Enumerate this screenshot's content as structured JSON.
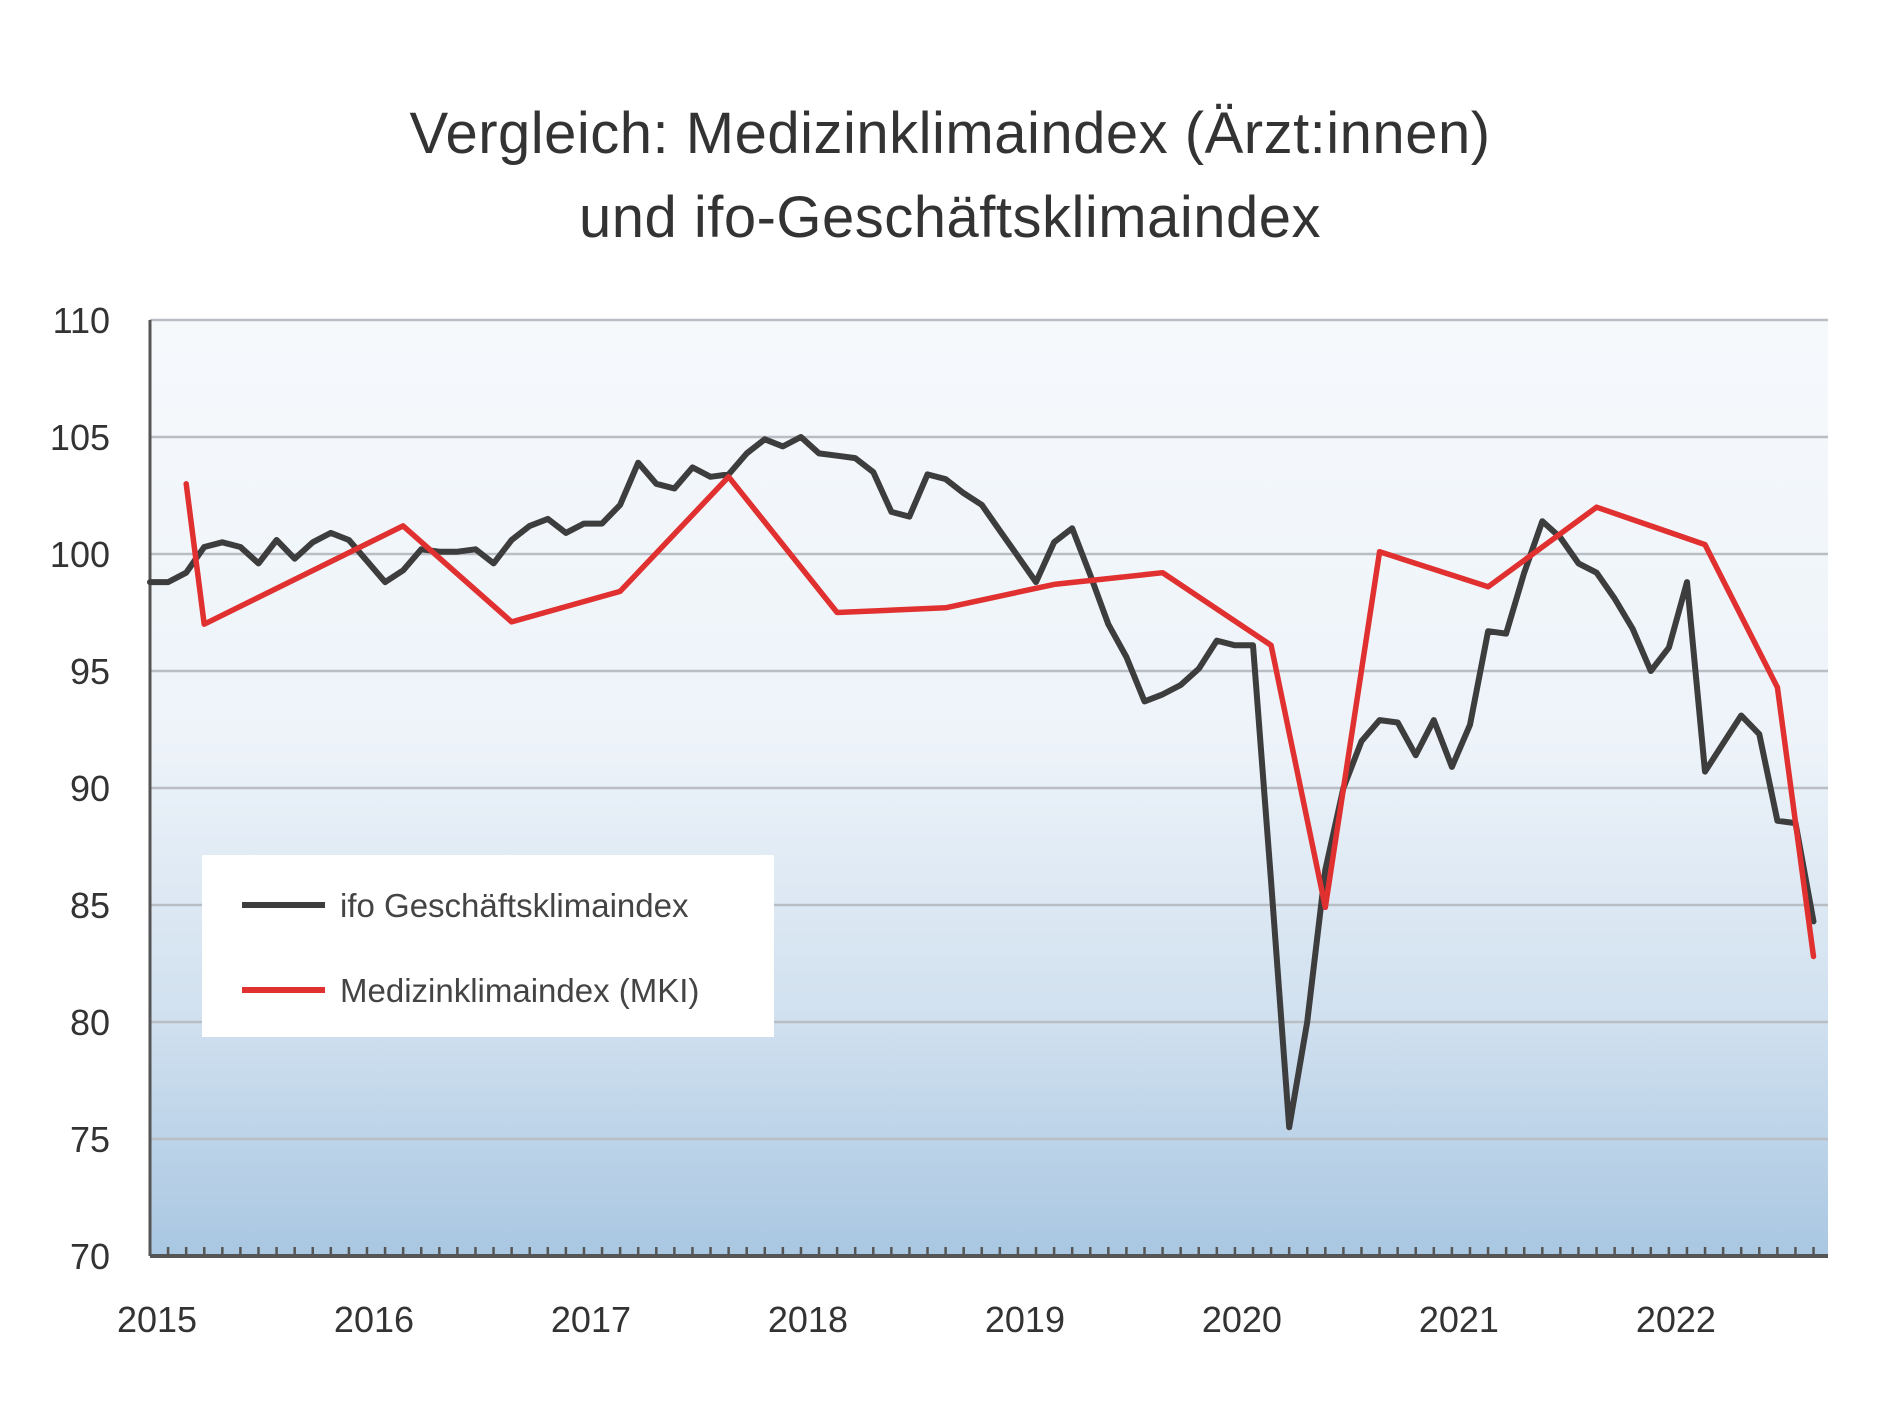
{
  "chart_data": {
    "type": "line",
    "title": "Vergleich: Medizinklimaindex (Ärzt:innen) und ifo-Geschäftsklimaindex",
    "title_lines": [
      "Vergleich: Medizinklimaindex (Ärzt:innen)",
      "und ifo-Geschäftsklimaindex"
    ],
    "xlabel": "",
    "ylabel": "",
    "ylim": [
      70,
      110
    ],
    "yticks": [
      110,
      105,
      100,
      95,
      90,
      85,
      80,
      75,
      70
    ],
    "xticks": [
      "2015",
      "2016",
      "2017",
      "2018",
      "2019",
      "2020",
      "2021",
      "2022"
    ],
    "x_unit": "months since Jan 2015",
    "xlim": [
      0,
      92.8
    ],
    "grid": true,
    "legend_position": "lower-left",
    "series": [
      {
        "name": "ifo Geschäftsklimaindex",
        "color": "#3d3d3d",
        "x": [
          0,
          1,
          2,
          3,
          4,
          5,
          6,
          7,
          8,
          9,
          10,
          11,
          12,
          13,
          14,
          15,
          16,
          17,
          18,
          19,
          20,
          21,
          22,
          23,
          24,
          25,
          26,
          27,
          28,
          29,
          30,
          31,
          32,
          33,
          34,
          35,
          36,
          37,
          38,
          39,
          40,
          41,
          42,
          43,
          44,
          45,
          46,
          47,
          48,
          49,
          50,
          51,
          52,
          53,
          54,
          55,
          56,
          57,
          58,
          59,
          60,
          61,
          62,
          63,
          64,
          65,
          66,
          67,
          68,
          69,
          70,
          71,
          72,
          73,
          74,
          75,
          76,
          77,
          78,
          79,
          80,
          81,
          82,
          83,
          84,
          85,
          86,
          87,
          88,
          89,
          90,
          91,
          92
        ],
        "values": [
          98.8,
          98.8,
          99.2,
          100.3,
          100.5,
          100.3,
          99.6,
          100.6,
          99.8,
          100.5,
          100.9,
          100.6,
          99.7,
          98.8,
          99.3,
          100.2,
          100.1,
          100.1,
          100.2,
          99.6,
          100.6,
          101.2,
          101.5,
          100.9,
          101.3,
          101.3,
          102.1,
          103.9,
          103.0,
          102.8,
          103.7,
          103.3,
          103.4,
          104.3,
          104.9,
          104.6,
          105.0,
          104.3,
          104.2,
          104.1,
          103.5,
          101.8,
          101.6,
          103.4,
          103.2,
          102.6,
          102.1,
          101.0,
          99.9,
          98.8,
          100.5,
          101.1,
          99.1,
          97.0,
          95.6,
          93.7,
          94.0,
          94.4,
          95.1,
          96.3,
          96.1,
          96.1,
          86.0,
          75.5,
          80.0,
          86.5,
          90.0,
          92.0,
          92.9,
          92.8,
          91.4,
          92.9,
          90.9,
          92.7,
          96.7,
          96.6,
          99.2,
          101.4,
          100.7,
          99.6,
          99.2,
          98.1,
          96.8,
          95.0,
          96.0,
          98.8,
          90.7,
          91.9,
          93.1,
          92.3,
          88.6,
          88.5,
          84.3
        ]
      },
      {
        "name": "Medizinklimaindex (MKI)",
        "color": "#e03030",
        "x": [
          2,
          3,
          14,
          20,
          26,
          32,
          38,
          44,
          50,
          56,
          62,
          65,
          68,
          74,
          80,
          86,
          90,
          92
        ],
        "values": [
          103.0,
          97.0,
          101.2,
          97.1,
          98.4,
          103.3,
          97.5,
          97.7,
          98.7,
          99.2,
          96.1,
          84.9,
          100.1,
          98.6,
          102.0,
          100.4,
          94.3,
          82.8
        ]
      }
    ]
  }
}
